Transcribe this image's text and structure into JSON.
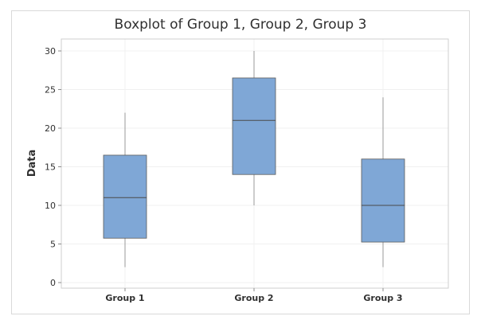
{
  "chart_data": {
    "type": "boxplot",
    "title": "Boxplot of Group 1, Group 2, Group 3",
    "xlabel": "",
    "ylabel": "Data",
    "ylim": [
      0,
      31.5
    ],
    "yticks": [
      0,
      5,
      10,
      15,
      20,
      25,
      30
    ],
    "grid": true,
    "box_color": "#7fa7d6",
    "categories": [
      "Group 1",
      "Group 2",
      "Group 3"
    ],
    "boxes": [
      {
        "category": "Group 1",
        "whisker_low": 2,
        "q1": 5.75,
        "median": 11,
        "q3": 16.5,
        "whisker_high": 22
      },
      {
        "category": "Group 2",
        "whisker_low": 10,
        "q1": 14,
        "median": 21,
        "q3": 26.5,
        "whisker_high": 30
      },
      {
        "category": "Group 3",
        "whisker_low": 2,
        "q1": 5.25,
        "median": 10,
        "q3": 16,
        "whisker_high": 24
      }
    ]
  }
}
